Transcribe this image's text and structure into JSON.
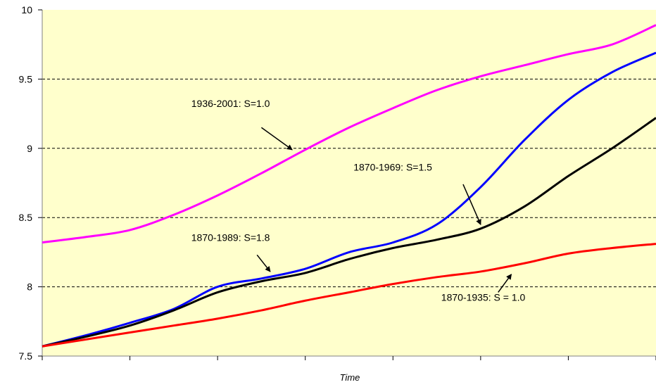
{
  "chart_data": {
    "type": "line",
    "title": "",
    "xlabel": "Time",
    "ylabel": "",
    "ylim": [
      7.5,
      10
    ],
    "yticks": [
      7.5,
      8,
      8.5,
      9,
      9.5,
      10
    ],
    "yticks_labels": [
      "7.5",
      "8",
      "8.5",
      "9",
      "9.5",
      "10"
    ],
    "x_categories": 7,
    "grid": "horizontal-dashed",
    "plot_background": "#ffffcc",
    "series": [
      {
        "color": "#ff00ff",
        "x": [
          0,
          0.5,
          1,
          1.5,
          2,
          2.5,
          3,
          3.5,
          4,
          4.5,
          5,
          5.5,
          6,
          6.5,
          7
        ],
        "y": [
          8.32,
          8.36,
          8.41,
          8.52,
          8.66,
          8.82,
          8.99,
          9.15,
          9.29,
          9.42,
          9.52,
          9.6,
          9.68,
          9.75,
          9.89
        ]
      },
      {
        "color": "#0000ff",
        "x": [
          0,
          0.5,
          1,
          1.5,
          2,
          2.5,
          3,
          3.5,
          4,
          4.5,
          5,
          5.5,
          6,
          6.5,
          7
        ],
        "y": [
          7.57,
          7.65,
          7.74,
          7.84,
          8.0,
          8.06,
          8.13,
          8.25,
          8.32,
          8.45,
          8.72,
          9.06,
          9.35,
          9.55,
          9.69
        ]
      },
      {
        "color": "#000000",
        "x": [
          0,
          0.5,
          1,
          1.5,
          2,
          2.5,
          3,
          3.5,
          4,
          4.5,
          5,
          5.5,
          6,
          6.5,
          7
        ],
        "y": [
          7.57,
          7.64,
          7.72,
          7.83,
          7.96,
          8.04,
          8.1,
          8.2,
          8.28,
          8.34,
          8.42,
          8.58,
          8.8,
          9.0,
          9.22
        ]
      },
      {
        "color": "#ff0000",
        "x": [
          0,
          0.5,
          1,
          1.5,
          2,
          2.5,
          3,
          3.5,
          4,
          4.5,
          5,
          5.5,
          6,
          6.5,
          7
        ],
        "y": [
          7.57,
          7.62,
          7.67,
          7.72,
          7.77,
          7.83,
          7.9,
          7.96,
          8.02,
          8.07,
          8.11,
          8.17,
          8.24,
          8.28,
          8.31
        ]
      }
    ],
    "annotations": [
      {
        "text": "1936-2001: S=1.0",
        "text_at": [
          1.7,
          9.3
        ],
        "arrow_from": [
          2.5,
          9.15
        ],
        "arrow_to": [
          2.85,
          8.99
        ],
        "color": "#000000"
      },
      {
        "text": "1870-1969: S=1.5",
        "text_at": [
          3.55,
          8.84
        ],
        "arrow_from": [
          4.8,
          8.74
        ],
        "arrow_to": [
          5.0,
          8.45
        ],
        "color": "#000000"
      },
      {
        "text": "1870-1989: S=1.8",
        "text_at": [
          1.7,
          8.33
        ],
        "arrow_from": [
          2.45,
          8.23
        ],
        "arrow_to": [
          2.6,
          8.11
        ],
        "color": "#000000"
      },
      {
        "text": "1870-1935: S = 1.0",
        "text_at": [
          4.55,
          7.9
        ],
        "arrow_from": [
          5.2,
          7.96
        ],
        "arrow_to": [
          5.35,
          8.09
        ],
        "color": "#000000"
      }
    ]
  }
}
